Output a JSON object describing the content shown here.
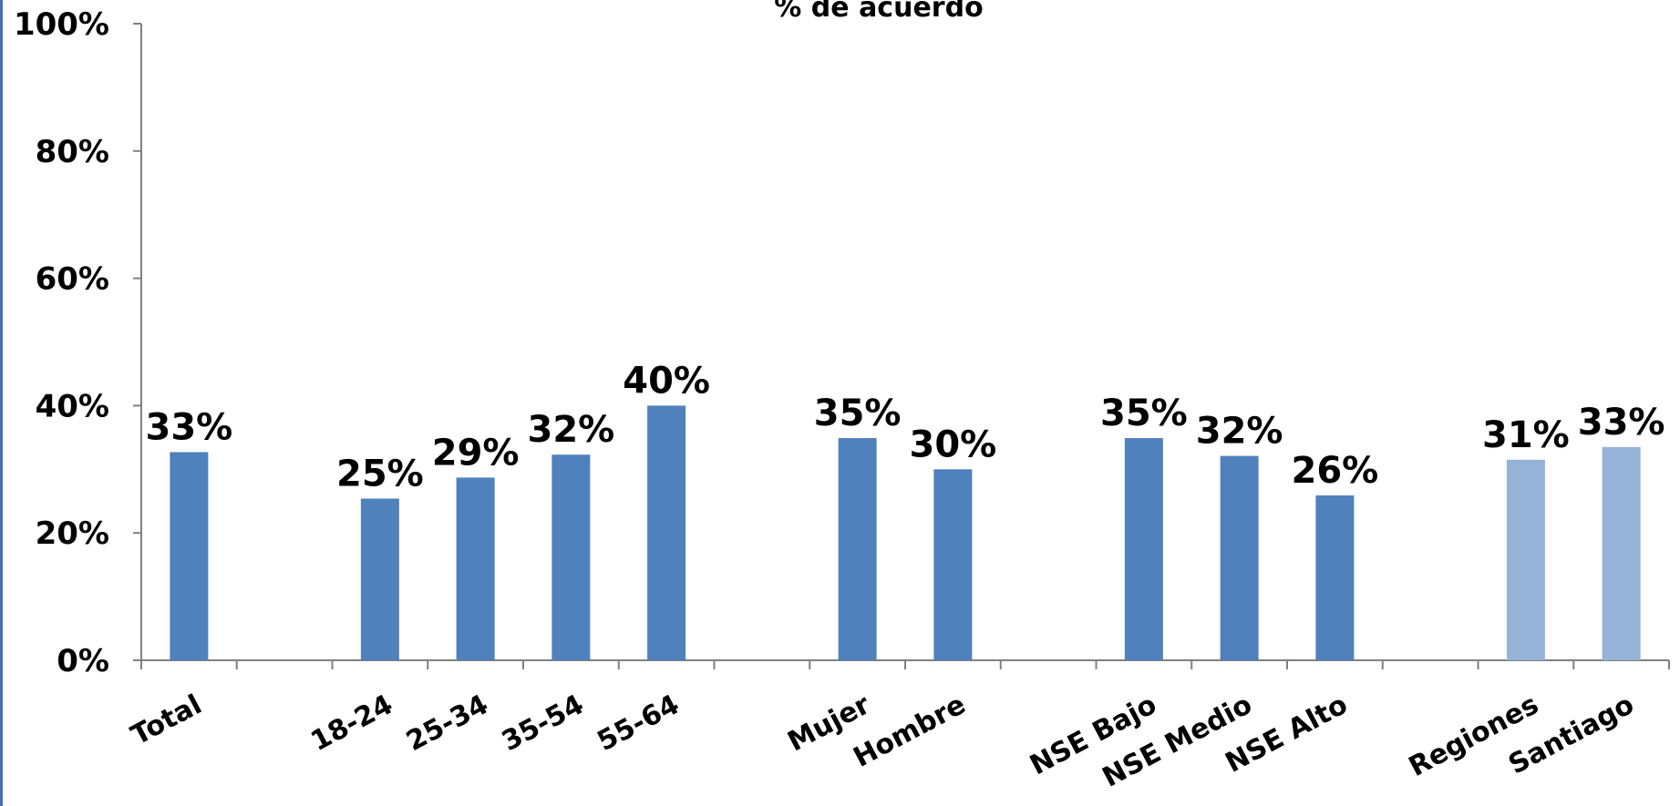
{
  "chart_data": {
    "type": "bar",
    "title": "% de acuerdo",
    "xlabel": "",
    "ylabel": "",
    "ylim": [
      0,
      100
    ],
    "y_ticks": [
      "0%",
      "20%",
      "40%",
      "60%",
      "80%",
      "100%"
    ],
    "y_tick_values": [
      0,
      20,
      40,
      60,
      80,
      100
    ],
    "grid": false,
    "legend": "none",
    "slots": [
      "Total",
      "",
      "18-24",
      "25-34",
      "35-54",
      "55-64",
      "",
      "Mujer",
      "Hombre",
      "",
      "NSE Bajo",
      "NSE Medio",
      "NSE Alto",
      "",
      "Regiones",
      "Santiago"
    ],
    "categories": [
      "Total",
      "18-24",
      "25-34",
      "35-54",
      "55-64",
      "Mujer",
      "Hombre",
      "NSE Bajo",
      "NSE Medio",
      "NSE Alto",
      "Regiones",
      "Santiago"
    ],
    "values": [
      32.7,
      25.4,
      28.7,
      32.3,
      40.0,
      34.9,
      30.0,
      34.9,
      32.1,
      25.9,
      31.5,
      33.5
    ],
    "value_labels": [
      "33%",
      "25%",
      "29%",
      "32%",
      "40%",
      "35%",
      "30%",
      "35%",
      "32%",
      "26%",
      "31%",
      "33%"
    ],
    "bar_colors": [
      "#4f81bd",
      "#4f81bd",
      "#4f81bd",
      "#4f81bd",
      "#4f81bd",
      "#4f81bd",
      "#4f81bd",
      "#4f81bd",
      "#4f81bd",
      "#4f81bd",
      "#95b3d7",
      "#95b3d7"
    ]
  }
}
